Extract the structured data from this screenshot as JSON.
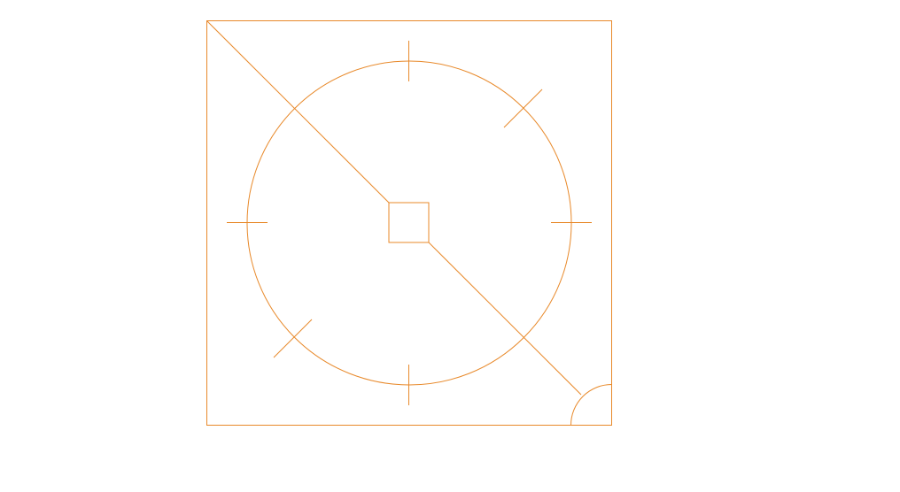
{
  "diagram": {
    "stroke_color": "#e8892a",
    "background_color": "#ffffff",
    "shapes": [
      "outer-square",
      "diagonal-line",
      "circle",
      "center-square",
      "tick-top",
      "tick-bottom",
      "tick-left",
      "tick-right",
      "tick-upper-right",
      "tick-lower-left",
      "corner-arc"
    ]
  }
}
